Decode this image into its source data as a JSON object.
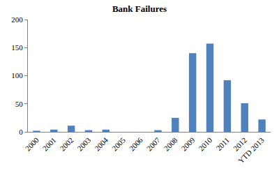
{
  "chart_data": {
    "type": "bar",
    "title": "Bank Failures",
    "categories": [
      "2000",
      "2001",
      "2002",
      "2003",
      "2004",
      "2005",
      "2006",
      "2007",
      "2008",
      "2009",
      "2010",
      "2011",
      "2012",
      "YTD 2013"
    ],
    "values": [
      2,
      4,
      11,
      3,
      4,
      0,
      0,
      3,
      25,
      140,
      157,
      92,
      51,
      22
    ],
    "color": "#4f81bd",
    "ylim": [
      0,
      200
    ],
    "yticks": [
      0,
      50,
      100,
      150,
      200
    ],
    "grid": false
  }
}
